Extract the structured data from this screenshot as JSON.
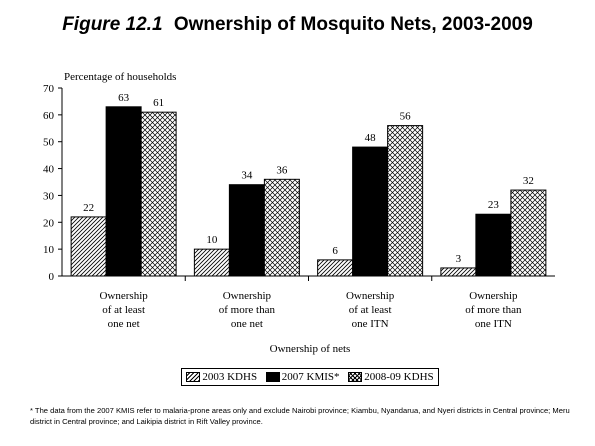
{
  "figure": {
    "number": "Figure 12.1",
    "title": "Ownership of Mosquito Nets, 2003-2009"
  },
  "footnote": "* The data from the 2007 KMIS refer to malaria-prone areas only and exclude Nairobi province; Kiambu, Nyandarua, and Nyeri districts in Central province; Meru district in Central province; and Laikipia district in Rift Valley province.",
  "colors": {
    "2003": "#ffffff",
    "2007": "#000000",
    "2008": "#ffffff"
  },
  "chart_data": {
    "type": "bar",
    "title": "Ownership of Mosquito Nets, 2003-2009",
    "ylabel": "Percentage of households",
    "xlabel": "Ownership of nets",
    "ylim": [
      0,
      70
    ],
    "yticks": [
      0,
      10,
      20,
      30,
      40,
      50,
      60,
      70
    ],
    "grid": false,
    "legend_position": "bottom",
    "categories": [
      [
        "Ownership",
        "of at least",
        "one net"
      ],
      [
        "Ownership",
        "of more than",
        "one net"
      ],
      [
        "Ownership",
        "of at least",
        "one ITN"
      ],
      [
        "Ownership",
        "of more than",
        "one ITN"
      ]
    ],
    "series": [
      {
        "name": "2003 KDHS",
        "pattern": "diagonal-hatch",
        "values": [
          22,
          10,
          6,
          3
        ]
      },
      {
        "name": "2007 KMIS*",
        "pattern": "solid-black",
        "values": [
          63,
          34,
          48,
          23
        ]
      },
      {
        "name": "2008-09 KDHS",
        "pattern": "crosshatch",
        "values": [
          61,
          36,
          56,
          32
        ]
      }
    ]
  }
}
